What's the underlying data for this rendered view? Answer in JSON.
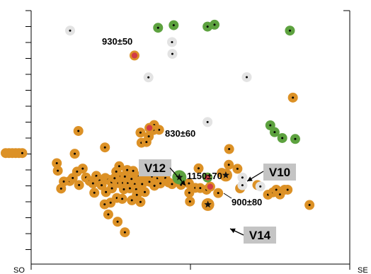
{
  "chart_data": {
    "type": "scatter",
    "xlabel": "",
    "ylabel": "",
    "x_axis_labels": {
      "left": "SO",
      "right": "SE"
    },
    "grid": false,
    "colors": {
      "orange": "#DC9126",
      "green": "#5DA23F",
      "grey": "#E3E3E3",
      "red": "#D23C46",
      "label_box": "#C4C4C4"
    },
    "dates": [
      {
        "text": "930±50",
        "x": 0.39,
        "y": 0.826
      },
      {
        "text": "830±60",
        "x": 0.43,
        "y": 0.494
      },
      {
        "text": "1150±70",
        "x": 0.591,
        "y": 0.354
      },
      {
        "text": "900±80",
        "x": 0.623,
        "y": 0.251
      }
    ],
    "vessels": [
      {
        "text": "V12",
        "x": 0.511,
        "y": 0.313
      },
      {
        "text": "V10",
        "x": 0.651,
        "y": 0.323
      },
      {
        "text": "V14",
        "x": 0.603,
        "y": 0.175
      }
    ],
    "series": [
      {
        "group": "orange",
        "points": [
          [
            0.0,
            0.391
          ],
          [
            0.01,
            0.391
          ],
          [
            0.02,
            0.391
          ],
          [
            0.03,
            0.391
          ],
          [
            0.04,
            0.391
          ],
          [
            0.05,
            0.391
          ],
          [
            0.219,
            0.485
          ],
          [
            0.208,
            0.388
          ],
          [
            0.154,
            0.348
          ],
          [
            0.157,
            0.316
          ],
          [
            0.167,
            0.24
          ],
          [
            0.175,
            0.27
          ],
          [
            0.193,
            0.272
          ],
          [
            0.202,
            0.285
          ],
          [
            0.215,
            0.312
          ],
          [
            0.221,
            0.255
          ],
          [
            0.232,
            0.325
          ],
          [
            0.242,
            0.287
          ],
          [
            0.253,
            0.272
          ],
          [
            0.263,
            0.262
          ],
          [
            0.267,
            0.222
          ],
          [
            0.273,
            0.294
          ],
          [
            0.283,
            0.274
          ],
          [
            0.289,
            0.254
          ],
          [
            0.299,
            0.415
          ],
          [
            0.3,
            0.285
          ],
          [
            0.302,
            0.225
          ],
          [
            0.309,
            0.278
          ],
          [
            0.319,
            0.267
          ],
          [
            0.32,
            0.241
          ],
          [
            0.328,
            0.284
          ],
          [
            0.333,
            0.312
          ],
          [
            0.339,
            0.263
          ],
          [
            0.342,
            0.335
          ],
          [
            0.346,
            0.292
          ],
          [
            0.353,
            0.264
          ],
          [
            0.356,
            0.237
          ],
          [
            0.359,
            0.291
          ],
          [
            0.366,
            0.319
          ],
          [
            0.368,
            0.263
          ],
          [
            0.374,
            0.241
          ],
          [
            0.379,
            0.281
          ],
          [
            0.384,
            0.315
          ],
          [
            0.389,
            0.259
          ],
          [
            0.393,
            0.237
          ],
          [
            0.401,
            0.291
          ],
          [
            0.404,
            0.272
          ],
          [
            0.411,
            0.259
          ],
          [
            0.414,
            0.305
          ],
          [
            0.419,
            0.225
          ],
          [
            0.424,
            0.278
          ],
          [
            0.431,
            0.462
          ],
          [
            0.433,
            0.269
          ],
          [
            0.441,
            0.291
          ],
          [
            0.447,
            0.51
          ],
          [
            0.448,
            0.252
          ],
          [
            0.457,
            0.284
          ],
          [
            0.462,
            0.49
          ],
          [
            0.466,
            0.262
          ],
          [
            0.471,
            0.296
          ],
          [
            0.481,
            0.285
          ],
          [
            0.491,
            0.266
          ],
          [
            0.501,
            0.259
          ],
          [
            0.298,
            0.173
          ],
          [
            0.316,
            0.18
          ],
          [
            0.335,
            0.2
          ],
          [
            0.351,
            0.196
          ],
          [
            0.309,
            0.13
          ],
          [
            0.337,
            0.099
          ],
          [
            0.38,
            0.19
          ],
          [
            0.395,
            0.213
          ],
          [
            0.406,
            0.183
          ],
          [
            0.359,
            0.054
          ],
          [
            0.409,
            0.435
          ],
          [
            0.424,
            0.438
          ],
          [
            0.406,
            0.478
          ],
          [
            0.445,
            0.489
          ],
          [
            0.528,
            0.256
          ],
          [
            0.552,
            0.262
          ],
          [
            0.571,
            0.243
          ],
          [
            0.586,
            0.242
          ],
          [
            0.553,
            0.222
          ],
          [
            0.555,
            0.185
          ],
          [
            0.581,
            0.326
          ],
          [
            0.605,
            0.235
          ],
          [
            0.64,
            0.221
          ],
          [
            0.651,
            0.307
          ],
          [
            0.673,
            0.408
          ],
          [
            0.672,
            0.341
          ],
          [
            0.698,
            0.324
          ],
          [
            0.706,
            0.241
          ],
          [
            0.758,
            0.255
          ],
          [
            0.79,
            0.214
          ],
          [
            0.805,
            0.224
          ],
          [
            0.815,
            0.235
          ],
          [
            0.826,
            0.215
          ],
          [
            0.84,
            0.235
          ],
          [
            0.849,
            0.235
          ],
          [
            0.915,
            0.17
          ],
          [
            0.865,
            0.627
          ]
        ]
      },
      {
        "group": "green",
        "points": [
          [
            0.459,
            0.924
          ],
          [
            0.506,
            0.935
          ],
          [
            0.608,
            0.929
          ],
          [
            0.629,
            0.937
          ],
          [
            0.856,
            0.912
          ],
          [
            0.797,
            0.509
          ],
          [
            0.81,
            0.48
          ],
          [
            0.833,
            0.455
          ],
          [
            0.872,
            0.451
          ]
        ]
      },
      {
        "group": "grey",
        "points": [
          [
            0.194,
            0.912
          ],
          [
            0.43,
            0.713
          ],
          [
            0.501,
            0.863
          ],
          [
            0.502,
            0.813
          ],
          [
            0.608,
            0.523
          ],
          [
            0.726,
            0.714
          ],
          [
            0.713,
            0.287
          ],
          [
            0.767,
            0.249
          ],
          [
            0.713,
            0.254
          ]
        ]
      },
      {
        "group": "orange_red",
        "points": [
          [
            0.388,
            0.806
          ],
          [
            0.433,
            0.498
          ],
          [
            0.616,
            0.248
          ]
        ]
      },
      {
        "group": "green_red",
        "points": [
          [
            0.608,
            0.287
          ]
        ]
      },
      {
        "group": "star",
        "points": [
          [
            0.523,
            0.288
          ],
          [
            0.663,
            0.297
          ],
          [
            0.609,
            0.172
          ]
        ]
      }
    ]
  }
}
